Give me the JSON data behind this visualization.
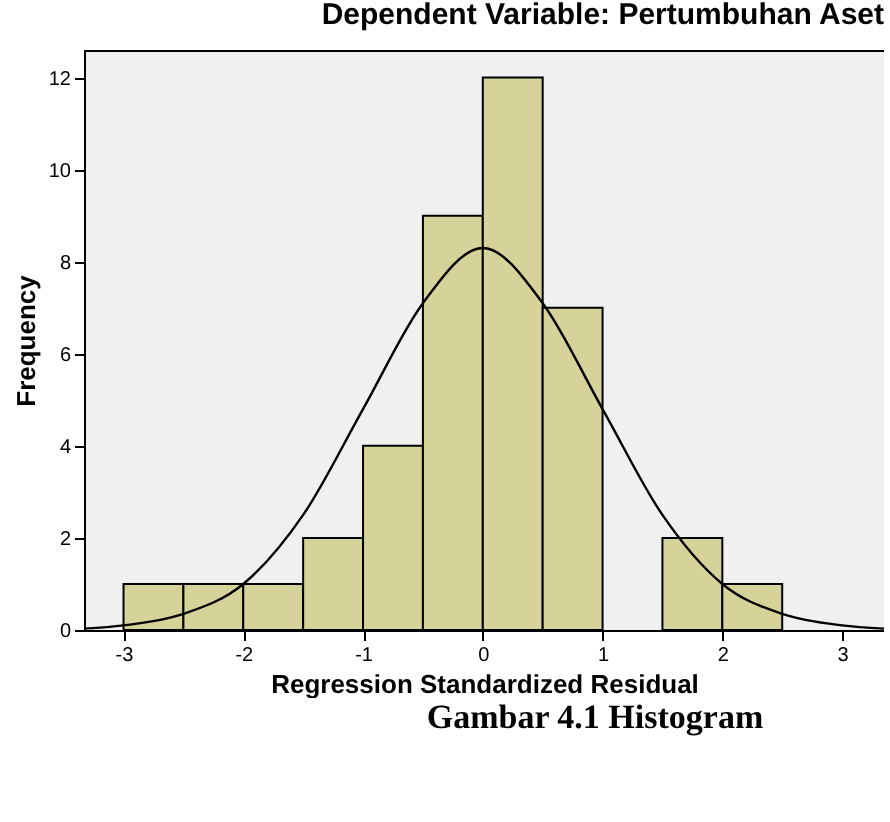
{
  "chart_data": {
    "type": "histogram",
    "title": "Dependent Variable: Pertumbuhan Aset",
    "xlabel": "Regression Standardized Residual",
    "ylabel": "Frequency",
    "annotations": [
      "Gambar 4.1 Histogram"
    ],
    "bins": [
      -3,
      -2.5,
      -2,
      -1.5,
      -1,
      -0.5,
      0,
      0.5,
      1,
      1.5,
      2,
      2.5
    ],
    "values": [
      1,
      1,
      1,
      2,
      4,
      9,
      12,
      7,
      0,
      2,
      1
    ],
    "color": "#d6d39a",
    "series": [
      {
        "type": "line",
        "color": "#000000",
        "x": [
          -3.33,
          -3,
          -2.5,
          -2,
          -1.5,
          -1,
          -0.5,
          0,
          0.5,
          1,
          1.5,
          2,
          2.5,
          3,
          3.35
        ],
        "values": [
          0.03,
          0.1,
          0.35,
          1.0,
          2.5,
          4.8,
          7.1,
          8.3,
          7.1,
          4.8,
          2.5,
          1.0,
          0.35,
          0.1,
          0.03
        ]
      }
    ],
    "xlim": [
      -3.33,
      3.35
    ],
    "xticks": [
      -3,
      -2,
      -1,
      0,
      1,
      2,
      3
    ],
    "ylim": [
      0,
      12.6
    ],
    "yticks": [
      0,
      2,
      4,
      6,
      8,
      10,
      12
    ],
    "grid": false
  }
}
